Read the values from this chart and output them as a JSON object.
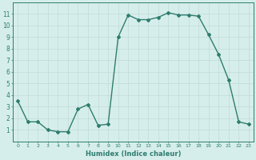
{
  "x": [
    0,
    1,
    2,
    3,
    4,
    5,
    6,
    7,
    8,
    9,
    10,
    11,
    12,
    13,
    14,
    15,
    16,
    17,
    18,
    19,
    20,
    21,
    22,
    23
  ],
  "y": [
    3.5,
    1.7,
    1.7,
    1.0,
    0.85,
    0.85,
    2.8,
    3.2,
    1.4,
    1.5,
    9.0,
    10.9,
    10.5,
    10.5,
    10.7,
    11.1,
    10.9,
    10.9,
    10.8,
    9.2,
    7.5,
    5.3,
    1.7,
    1.5
  ],
  "xlabel": "Humidex (Indice chaleur)",
  "xlim": [
    -0.5,
    23.5
  ],
  "ylim": [
    0,
    12
  ],
  "yticks": [
    1,
    2,
    3,
    4,
    5,
    6,
    7,
    8,
    9,
    10,
    11
  ],
  "xticks": [
    0,
    1,
    2,
    3,
    4,
    5,
    6,
    7,
    8,
    9,
    10,
    11,
    12,
    13,
    14,
    15,
    16,
    17,
    18,
    19,
    20,
    21,
    22,
    23
  ],
  "line_color": "#2e7d6e",
  "marker": "D",
  "marker_size": 2.0,
  "bg_color": "#d6eeeb",
  "grid_color": "#c0dbd7",
  "line_width": 1.0
}
